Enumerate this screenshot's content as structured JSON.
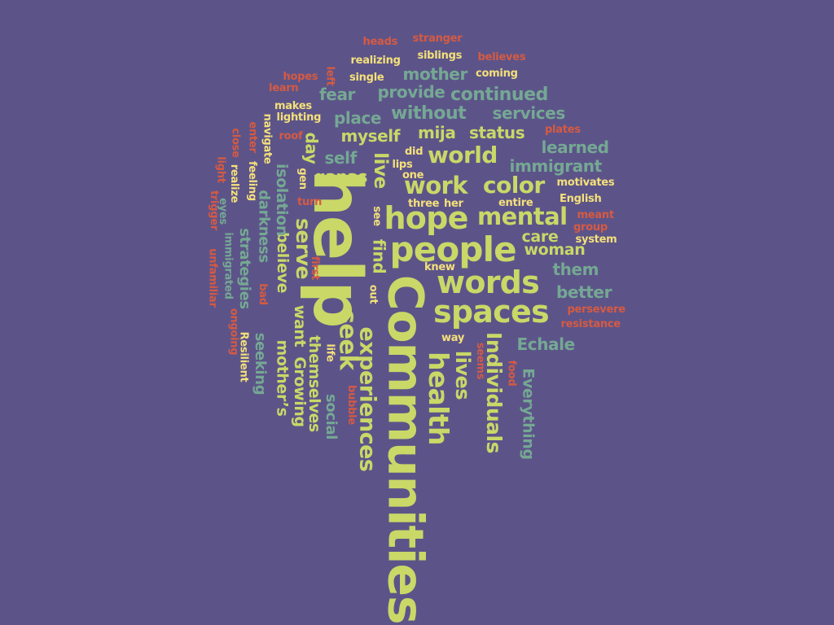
{
  "palette": {
    "background": "#5c5489",
    "green": "#c9d867",
    "teal": "#75a893",
    "yellow": "#f4e07a",
    "red": "#d65a42"
  },
  "words": [
    {
      "text": "Communities",
      "size": "xl",
      "color": "green",
      "orientation": "vertical"
    },
    {
      "text": "help",
      "size": "xl",
      "color": "green",
      "orientation": "vertical"
    },
    {
      "text": "hope",
      "size": "l",
      "color": "green",
      "orientation": "horizontal"
    },
    {
      "text": "people",
      "size": "l",
      "color": "green",
      "orientation": "horizontal"
    },
    {
      "text": "words",
      "size": "l",
      "color": "green",
      "orientation": "horizontal"
    },
    {
      "text": "spaces",
      "size": "l",
      "color": "green",
      "orientation": "horizontal"
    },
    {
      "text": "health",
      "size": "l",
      "color": "green",
      "orientation": "vertical"
    },
    {
      "text": "experiences",
      "size": "m",
      "color": "green",
      "orientation": "vertical"
    },
    {
      "text": "seek",
      "size": "m",
      "color": "green",
      "orientation": "vertical"
    },
    {
      "text": "work",
      "size": "m",
      "color": "green",
      "orientation": "horizontal"
    },
    {
      "text": "world",
      "size": "m",
      "color": "green",
      "orientation": "horizontal"
    },
    {
      "text": "color",
      "size": "m",
      "color": "green",
      "orientation": "horizontal"
    },
    {
      "text": "mental",
      "size": "m",
      "color": "green",
      "orientation": "horizontal"
    },
    {
      "text": "Individuals",
      "size": "m",
      "color": "green",
      "orientation": "vertical"
    },
    {
      "text": "lives",
      "size": "m",
      "color": "green",
      "orientation": "vertical"
    },
    {
      "text": "serve",
      "size": "m",
      "color": "green",
      "orientation": "vertical"
    },
    {
      "text": "live",
      "size": "m",
      "color": "green",
      "orientation": "vertical"
    },
    {
      "text": "find",
      "size": "s",
      "color": "green",
      "orientation": "vertical"
    },
    {
      "text": "mija",
      "size": "s",
      "color": "green",
      "orientation": "horizontal"
    },
    {
      "text": "myself",
      "size": "s",
      "color": "green",
      "orientation": "horizontal"
    },
    {
      "text": "status",
      "size": "s",
      "color": "green",
      "orientation": "horizontal"
    },
    {
      "text": "care",
      "size": "s",
      "color": "green",
      "orientation": "horizontal"
    },
    {
      "text": "woman",
      "size": "s",
      "color": "green",
      "orientation": "horizontal"
    },
    {
      "text": "ganas",
      "size": "s",
      "color": "green",
      "orientation": "horizontal"
    },
    {
      "text": "themselves",
      "size": "s",
      "color": "green",
      "orientation": "vertical"
    },
    {
      "text": "want",
      "size": "s",
      "color": "green",
      "orientation": "vertical"
    },
    {
      "text": "believe",
      "size": "s",
      "color": "green",
      "orientation": "vertical"
    },
    {
      "text": "Growing",
      "size": "s",
      "color": "green",
      "orientation": "vertical"
    },
    {
      "text": "mother’s",
      "size": "s",
      "color": "green",
      "orientation": "vertical"
    },
    {
      "text": "day",
      "size": "s",
      "color": "green",
      "orientation": "vertical"
    },
    {
      "text": "mother",
      "size": "s",
      "color": "teal",
      "orientation": "horizontal"
    },
    {
      "text": "provide",
      "size": "s",
      "color": "teal",
      "orientation": "horizontal"
    },
    {
      "text": "fear",
      "size": "s",
      "color": "teal",
      "orientation": "horizontal"
    },
    {
      "text": "continued",
      "size": "s",
      "color": "teal",
      "orientation": "horizontal"
    },
    {
      "text": "place",
      "size": "s",
      "color": "teal",
      "orientation": "horizontal"
    },
    {
      "text": "without",
      "size": "s",
      "color": "teal",
      "orientation": "horizontal"
    },
    {
      "text": "services",
      "size": "s",
      "color": "teal",
      "orientation": "horizontal"
    },
    {
      "text": "learned",
      "size": "s",
      "color": "teal",
      "orientation": "horizontal"
    },
    {
      "text": "immigrant",
      "size": "s",
      "color": "teal",
      "orientation": "horizontal"
    },
    {
      "text": "self",
      "size": "s",
      "color": "teal",
      "orientation": "horizontal"
    },
    {
      "text": "them",
      "size": "s",
      "color": "teal",
      "orientation": "horizontal"
    },
    {
      "text": "better",
      "size": "s",
      "color": "teal",
      "orientation": "horizontal"
    },
    {
      "text": "Echale",
      "size": "s",
      "color": "teal",
      "orientation": "horizontal"
    },
    {
      "text": "Everything",
      "size": "s",
      "color": "teal",
      "orientation": "vertical"
    },
    {
      "text": "social",
      "size": "s",
      "color": "teal",
      "orientation": "vertical"
    },
    {
      "text": "seeking",
      "size": "s",
      "color": "teal",
      "orientation": "vertical"
    },
    {
      "text": "strategies",
      "size": "s",
      "color": "teal",
      "orientation": "vertical"
    },
    {
      "text": "darkness",
      "size": "s",
      "color": "teal",
      "orientation": "vertical"
    },
    {
      "text": "isolation",
      "size": "s",
      "color": "teal",
      "orientation": "vertical"
    },
    {
      "text": "immigrated",
      "size": "xs",
      "color": "teal",
      "orientation": "vertical"
    },
    {
      "text": "eyes",
      "size": "xs",
      "color": "teal",
      "orientation": "vertical"
    },
    {
      "text": "realizing",
      "size": "xs",
      "color": "yellow",
      "orientation": "horizontal"
    },
    {
      "text": "siblings",
      "size": "xs",
      "color": "yellow",
      "orientation": "horizontal"
    },
    {
      "text": "single",
      "size": "xs",
      "color": "yellow",
      "orientation": "horizontal"
    },
    {
      "text": "coming",
      "size": "xs",
      "color": "yellow",
      "orientation": "horizontal"
    },
    {
      "text": "makes",
      "size": "xs",
      "color": "yellow",
      "orientation": "horizontal"
    },
    {
      "text": "lighting",
      "size": "xs",
      "color": "yellow",
      "orientation": "horizontal"
    },
    {
      "text": "did",
      "size": "xs",
      "color": "yellow",
      "orientation": "horizontal"
    },
    {
      "text": "lips",
      "size": "xs",
      "color": "yellow",
      "orientation": "horizontal"
    },
    {
      "text": "one",
      "size": "xs",
      "color": "yellow",
      "orientation": "horizontal"
    },
    {
      "text": "three",
      "size": "xs",
      "color": "yellow",
      "orientation": "horizontal"
    },
    {
      "text": "her",
      "size": "xs",
      "color": "yellow",
      "orientation": "horizontal"
    },
    {
      "text": "entire",
      "size": "xs",
      "color": "yellow",
      "orientation": "horizontal"
    },
    {
      "text": "motivates",
      "size": "xs",
      "color": "yellow",
      "orientation": "horizontal"
    },
    {
      "text": "English",
      "size": "xs",
      "color": "yellow",
      "orientation": "horizontal"
    },
    {
      "text": "system",
      "size": "xs",
      "color": "yellow",
      "orientation": "horizontal"
    },
    {
      "text": "knew",
      "size": "xs",
      "color": "yellow",
      "orientation": "horizontal"
    },
    {
      "text": "way",
      "size": "xs",
      "color": "yellow",
      "orientation": "horizontal"
    },
    {
      "text": "navigate",
      "size": "xs",
      "color": "yellow",
      "orientation": "vertical"
    },
    {
      "text": "feeling",
      "size": "xs",
      "color": "yellow",
      "orientation": "vertical"
    },
    {
      "text": "realize",
      "size": "xs",
      "color": "yellow",
      "orientation": "vertical"
    },
    {
      "text": "gen",
      "size": "xs",
      "color": "yellow",
      "orientation": "vertical"
    },
    {
      "text": "see",
      "size": "xs",
      "color": "yellow",
      "orientation": "vertical"
    },
    {
      "text": "out",
      "size": "xs",
      "color": "yellow",
      "orientation": "vertical"
    },
    {
      "text": "life",
      "size": "xs",
      "color": "yellow",
      "orientation": "vertical"
    },
    {
      "text": "Resilient",
      "size": "xs",
      "color": "yellow",
      "orientation": "vertical"
    },
    {
      "text": "heads",
      "size": "xs",
      "color": "red",
      "orientation": "horizontal"
    },
    {
      "text": "stranger",
      "size": "xs",
      "color": "red",
      "orientation": "horizontal"
    },
    {
      "text": "believes",
      "size": "xs",
      "color": "red",
      "orientation": "horizontal"
    },
    {
      "text": "hopes",
      "size": "xs",
      "color": "red",
      "orientation": "horizontal"
    },
    {
      "text": "learn",
      "size": "xs",
      "color": "red",
      "orientation": "horizontal"
    },
    {
      "text": "roof",
      "size": "xs",
      "color": "red",
      "orientation": "horizontal"
    },
    {
      "text": "plates",
      "size": "xs",
      "color": "red",
      "orientation": "horizontal"
    },
    {
      "text": "turn",
      "size": "xs",
      "color": "red",
      "orientation": "horizontal"
    },
    {
      "text": "meant",
      "size": "xs",
      "color": "red",
      "orientation": "horizontal"
    },
    {
      "text": "group",
      "size": "xs",
      "color": "red",
      "orientation": "horizontal"
    },
    {
      "text": "persevere",
      "size": "xs",
      "color": "red",
      "orientation": "horizontal"
    },
    {
      "text": "resistance",
      "size": "xs",
      "color": "red",
      "orientation": "horizontal"
    },
    {
      "text": "left",
      "size": "xs",
      "color": "red",
      "orientation": "vertical"
    },
    {
      "text": "enter",
      "size": "xs",
      "color": "red",
      "orientation": "vertical"
    },
    {
      "text": "close",
      "size": "xs",
      "color": "red",
      "orientation": "vertical"
    },
    {
      "text": "light",
      "size": "xs",
      "color": "red",
      "orientation": "vertical"
    },
    {
      "text": "trigger",
      "size": "xs",
      "color": "red",
      "orientation": "vertical"
    },
    {
      "text": "unfamiliar",
      "size": "xs",
      "color": "red",
      "orientation": "vertical"
    },
    {
      "text": "ongoing",
      "size": "xs",
      "color": "red",
      "orientation": "vertical"
    },
    {
      "text": "bad",
      "size": "xs",
      "color": "red",
      "orientation": "vertical"
    },
    {
      "text": "first",
      "size": "xs",
      "color": "red",
      "orientation": "vertical"
    },
    {
      "text": "bubble",
      "size": "xs",
      "color": "red",
      "orientation": "vertical"
    },
    {
      "text": "seems",
      "size": "xs",
      "color": "red",
      "orientation": "vertical"
    },
    {
      "text": "food",
      "size": "xs",
      "color": "red",
      "orientation": "vertical"
    }
  ]
}
